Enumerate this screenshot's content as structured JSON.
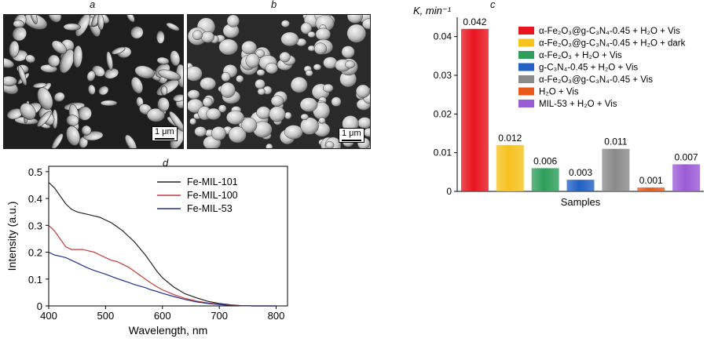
{
  "panels": {
    "a": {
      "label": "a",
      "scale_label": "1 μm"
    },
    "b": {
      "label": "b",
      "scale_label": "1 μm"
    },
    "c": {
      "label": "c"
    },
    "d": {
      "label": "d"
    }
  },
  "chart_data": [
    {
      "type": "bar",
      "panel": "c",
      "ylabel": "K, min⁻¹",
      "xlabel": "Samples",
      "ylim": [
        0,
        0.045
      ],
      "yticks": [
        0,
        0.01,
        0.02,
        0.03,
        0.04
      ],
      "ytick_labels": [
        "0",
        "0.01",
        "0.02",
        "0.03",
        "0.04"
      ],
      "legend_position": "top-right",
      "series": [
        {
          "name": "α-Fe₂O₃@g-C₃N₄-0.45 + H₂O + Vis",
          "value": 0.042,
          "label": "0.042",
          "color": "#e8141e"
        },
        {
          "name": "α-Fe₂O₃@g-C₃N₄-0.45 + H₂O + dark",
          "value": 0.012,
          "label": "0.012",
          "color": "#f6c21e"
        },
        {
          "name": "α-Fe₂O₃ + H₂O + Vis",
          "value": 0.006,
          "label": "0.006",
          "color": "#2e9e5a"
        },
        {
          "name": "g-C₃N₄-0.45 + H₂O + Vis",
          "value": 0.003,
          "label": "0.003",
          "color": "#2160c4"
        },
        {
          "name": "α-Fe₂O₃@g-C₃N₄-0.45 + Vis",
          "value": 0.011,
          "label": "0.011",
          "color": "#8a8a8a"
        },
        {
          "name": "H₂O + Vis",
          "value": 0.001,
          "label": "0.001",
          "color": "#e8591a"
        },
        {
          "name": "MIL-53 + H₂O + Vis",
          "value": 0.007,
          "label": "0.007",
          "color": "#9b5ad6"
        }
      ]
    },
    {
      "type": "line",
      "panel": "d",
      "xlabel": "Wavelength, nm",
      "ylabel": "Intensity (a.u.)",
      "xlim": [
        400,
        820
      ],
      "ylim": [
        0,
        0.52
      ],
      "xticks": [
        400,
        500,
        600,
        700,
        800
      ],
      "yticks": [
        0,
        0.1,
        0.2,
        0.3,
        0.4,
        0.5
      ],
      "ytick_labels": [
        "0",
        "0.1",
        "0.2",
        "0.3",
        "0.4",
        "0.5"
      ],
      "legend_position": "top-right",
      "series": [
        {
          "name": "Fe-MIL-101",
          "color": "#222222",
          "x": [
            400,
            410,
            420,
            430,
            440,
            450,
            460,
            470,
            480,
            490,
            500,
            510,
            520,
            530,
            540,
            550,
            560,
            570,
            580,
            590,
            600,
            620,
            640,
            660,
            680,
            700,
            720,
            740,
            760,
            780,
            800
          ],
          "y": [
            0.46,
            0.44,
            0.41,
            0.38,
            0.36,
            0.35,
            0.345,
            0.34,
            0.335,
            0.33,
            0.32,
            0.31,
            0.295,
            0.28,
            0.26,
            0.24,
            0.215,
            0.19,
            0.16,
            0.13,
            0.105,
            0.07,
            0.045,
            0.03,
            0.017,
            0.009,
            0.004,
            0.001,
            0.0,
            0.0,
            0.0
          ]
        },
        {
          "name": "Fe-MIL-100",
          "color": "#c23a3a",
          "x": [
            400,
            410,
            420,
            430,
            440,
            450,
            460,
            470,
            480,
            490,
            500,
            510,
            520,
            530,
            540,
            550,
            560,
            570,
            580,
            590,
            600,
            620,
            640,
            660,
            680,
            700,
            720,
            740,
            760,
            780,
            800
          ],
          "y": [
            0.3,
            0.28,
            0.25,
            0.22,
            0.21,
            0.21,
            0.21,
            0.205,
            0.2,
            0.19,
            0.18,
            0.17,
            0.165,
            0.155,
            0.145,
            0.13,
            0.115,
            0.1,
            0.085,
            0.072,
            0.06,
            0.042,
            0.028,
            0.018,
            0.011,
            0.006,
            0.003,
            0.001,
            0.0,
            0.0,
            0.0
          ]
        },
        {
          "name": "Fe-MIL-53",
          "color": "#23308f",
          "x": [
            400,
            410,
            420,
            430,
            440,
            450,
            460,
            470,
            480,
            490,
            500,
            510,
            520,
            530,
            540,
            550,
            560,
            570,
            580,
            590,
            600,
            620,
            640,
            660,
            680,
            700,
            720,
            740,
            760,
            780,
            800
          ],
          "y": [
            0.2,
            0.19,
            0.185,
            0.18,
            0.17,
            0.16,
            0.15,
            0.14,
            0.132,
            0.125,
            0.118,
            0.11,
            0.102,
            0.095,
            0.088,
            0.08,
            0.074,
            0.068,
            0.06,
            0.054,
            0.047,
            0.035,
            0.024,
            0.015,
            0.009,
            0.005,
            0.002,
            0.001,
            0.0,
            0.0,
            0.0
          ]
        }
      ]
    }
  ]
}
